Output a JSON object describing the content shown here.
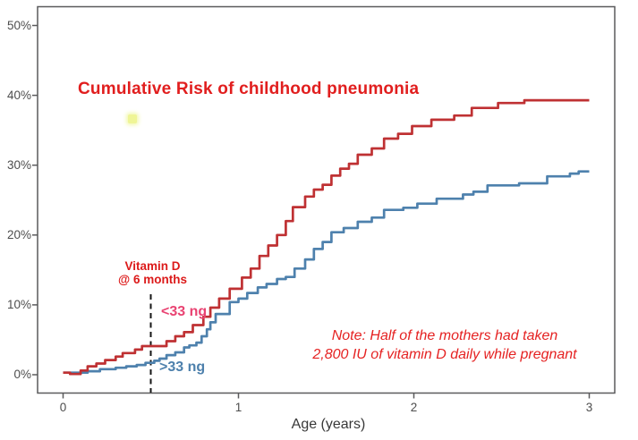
{
  "title": "Cumulative Risk of childhood pneumonia",
  "axes": {
    "x_label": "Age (years)",
    "x_ticks": [
      "0",
      "1",
      "2",
      "3"
    ],
    "y_ticks": [
      "0%",
      "10%",
      "20%",
      "30%",
      "40%",
      "50%"
    ]
  },
  "annotations": {
    "vitamin_d_line1": "Vitamin D",
    "vitamin_d_line2": "@ 6 months",
    "low_group_label": "<33 ng",
    "high_group_label": ">33 ng"
  },
  "note": {
    "line1": "Note: Half of the mothers had taken",
    "line2": "2,800 IU of vitamin D daily while pregnant"
  },
  "colors": {
    "title_red": "#e11e1e",
    "annotation_red": "#dc1a1a",
    "note_red": "#e52222",
    "low_label_pink": "#e94372",
    "high_label_blue": "#4d80ac",
    "curve_red": "#bf3133",
    "curve_blue": "#4e81ad",
    "axis_text": "#4d4d4d",
    "x_title_text": "#383838",
    "panel_border": "#5a5a5c",
    "dashed_line": "#161616",
    "highlight_dot": "#eff596"
  },
  "chart_data": {
    "type": "line",
    "step": true,
    "title": "Cumulative Risk of childhood pneumonia",
    "xlabel": "Age (years)",
    "ylabel": "",
    "xlim": [
      0,
      3
    ],
    "ylim": [
      0,
      50
    ],
    "x_tick_values": [
      0,
      1,
      2,
      3
    ],
    "y_tick_values": [
      0,
      10,
      20,
      30,
      40,
      50
    ],
    "grid": false,
    "legend": "inline text labels near curves",
    "vline": {
      "x": 0.5,
      "label": "Vitamin D @ 6 months",
      "style": "dashed"
    },
    "series": [
      {
        "name": "<33 ng",
        "color": "#bf3133",
        "x": [
          0,
          0.04,
          0.1,
          0.14,
          0.19,
          0.24,
          0.3,
          0.34,
          0.41,
          0.45,
          0.59,
          0.64,
          0.69,
          0.74,
          0.8,
          0.84,
          0.89,
          0.95,
          1.02,
          1.07,
          1.12,
          1.17,
          1.22,
          1.27,
          1.31,
          1.38,
          1.43,
          1.48,
          1.53,
          1.58,
          1.63,
          1.68,
          1.76,
          1.83,
          1.91,
          1.99,
          2.1,
          2.23,
          2.33,
          2.48,
          2.63,
          3.0
        ],
        "y": [
          0.3,
          0.1,
          0.6,
          1.2,
          1.6,
          2.1,
          2.6,
          3.1,
          3.6,
          4.1,
          4.8,
          5.5,
          6.1,
          7.1,
          8.3,
          9.6,
          10.9,
          12.3,
          13.9,
          15.2,
          17.0,
          18.5,
          20.0,
          22.0,
          24.0,
          25.5,
          26.5,
          27.2,
          28.5,
          29.5,
          30.2,
          31.5,
          32.4,
          33.8,
          34.5,
          35.6,
          36.5,
          37.1,
          38.2,
          38.9,
          39.3,
          39.3
        ]
      },
      {
        "name": ">33 ng",
        "color": "#4e81ad",
        "x": [
          0,
          0.14,
          0.21,
          0.3,
          0.36,
          0.42,
          0.47,
          0.52,
          0.55,
          0.59,
          0.64,
          0.69,
          0.72,
          0.76,
          0.79,
          0.82,
          0.84,
          0.87,
          0.95,
          1.0,
          1.05,
          1.11,
          1.16,
          1.22,
          1.27,
          1.32,
          1.38,
          1.43,
          1.48,
          1.53,
          1.6,
          1.68,
          1.76,
          1.83,
          1.94,
          2.02,
          2.13,
          2.28,
          2.34,
          2.42,
          2.6,
          2.76,
          2.89,
          2.94,
          3.0
        ],
        "y": [
          0.3,
          0.5,
          0.8,
          1.0,
          1.2,
          1.4,
          1.7,
          2.0,
          2.3,
          2.8,
          3.2,
          3.9,
          4.2,
          4.6,
          5.5,
          6.5,
          7.5,
          8.7,
          10.4,
          10.9,
          11.7,
          12.5,
          13.0,
          13.7,
          14.0,
          15.2,
          16.5,
          18.0,
          19.0,
          20.4,
          21.0,
          21.9,
          22.5,
          23.6,
          23.9,
          24.5,
          25.2,
          25.8,
          26.2,
          27.1,
          27.4,
          28.4,
          28.8,
          29.1,
          29.1
        ]
      }
    ]
  }
}
